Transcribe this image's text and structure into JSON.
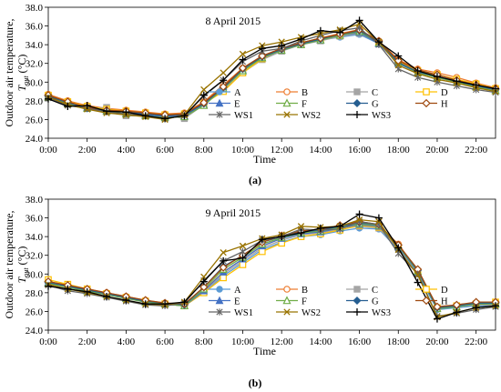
{
  "panel_labels": [
    "(a)",
    "(b)"
  ],
  "legend_order": [
    "A",
    "B",
    "C",
    "D",
    "E",
    "F",
    "G",
    "H",
    "WS1",
    "WS2",
    "WS3"
  ],
  "styles": {
    "A": {
      "color": "#5b9bd5",
      "marker": "circle"
    },
    "B": {
      "color": "#ed7d31",
      "marker": "circle-open"
    },
    "C": {
      "color": "#a5a5a5",
      "marker": "square"
    },
    "D": {
      "color": "#ffc000",
      "marker": "square-open"
    },
    "E": {
      "color": "#4472c4",
      "marker": "triangle"
    },
    "F": {
      "color": "#70ad47",
      "marker": "triangle-open"
    },
    "G": {
      "color": "#255e91",
      "marker": "diamond"
    },
    "H": {
      "color": "#9e480e",
      "marker": "diamond-open"
    },
    "WS1": {
      "color": "#636363",
      "marker": "star"
    },
    "WS2": {
      "color": "#997300",
      "marker": "x"
    },
    "WS3": {
      "color": "#000000",
      "marker": "plus"
    }
  },
  "chart_data": [
    {
      "type": "line",
      "annotation": "8 April 2015",
      "xlabel": "Time",
      "ylabel_line1": "Outdoor air temperature,",
      "ylabel_var": "T",
      "ylabel_sub": "out",
      "ylabel_unit": " (°C)",
      "ylim": [
        24.0,
        38.0
      ],
      "yticks": [
        "24.0",
        "26.0",
        "28.0",
        "30.0",
        "32.0",
        "34.0",
        "36.0",
        "38.0"
      ],
      "xlim": [
        0,
        23
      ],
      "xticks": [
        "0:00",
        "2:00",
        "4:00",
        "6:00",
        "8:00",
        "10:00",
        "12:00",
        "14:00",
        "16:00",
        "18:00",
        "20:00",
        "22:00"
      ],
      "x": [
        0,
        1,
        2,
        3,
        4,
        5,
        6,
        7,
        8,
        9,
        10,
        11,
        12,
        13,
        14,
        15,
        16,
        17,
        18,
        19,
        20,
        21,
        22,
        23
      ],
      "series": [
        {
          "name": "A",
          "values": [
            28.6,
            27.8,
            27.3,
            27.1,
            26.8,
            26.6,
            26.4,
            26.6,
            27.8,
            29.4,
            31.2,
            32.5,
            33.4,
            34.0,
            34.5,
            34.8,
            35.1,
            34.1,
            32.1,
            31.1,
            30.6,
            30.1,
            29.6,
            29.2
          ]
        },
        {
          "name": "B",
          "values": [
            28.7,
            28.0,
            27.5,
            27.2,
            27.0,
            26.8,
            26.6,
            26.7,
            27.9,
            29.7,
            31.5,
            32.8,
            33.6,
            34.2,
            34.7,
            35.2,
            35.6,
            34.4,
            32.4,
            31.4,
            31.0,
            30.5,
            29.9,
            29.4
          ]
        },
        {
          "name": "C",
          "values": [
            28.5,
            27.7,
            27.2,
            27.3,
            26.4,
            26.4,
            26.5,
            26.1,
            27.6,
            29.2,
            31.0,
            32.4,
            33.3,
            34.0,
            34.4,
            34.9,
            35.2,
            34.2,
            32.0,
            31.1,
            30.6,
            30.1,
            29.6,
            29.3
          ]
        },
        {
          "name": "D",
          "values": [
            28.6,
            27.9,
            27.4,
            27.1,
            26.9,
            26.7,
            26.5,
            26.6,
            27.7,
            29.0,
            31.0,
            32.5,
            33.5,
            34.1,
            34.6,
            35.0,
            35.4,
            34.2,
            32.2,
            31.2,
            30.8,
            30.3,
            29.8,
            29.3
          ]
        },
        {
          "name": "E",
          "values": [
            28.5,
            27.8,
            27.3,
            27.0,
            26.8,
            26.5,
            26.3,
            26.4,
            27.6,
            29.5,
            31.3,
            32.6,
            33.4,
            34.0,
            34.5,
            35.0,
            35.3,
            34.1,
            32.0,
            31.0,
            30.5,
            30.0,
            29.5,
            29.1
          ]
        },
        {
          "name": "F",
          "values": [
            28.4,
            27.7,
            27.2,
            26.9,
            26.6,
            26.4,
            26.2,
            26.3,
            27.5,
            29.3,
            31.2,
            32.6,
            33.4,
            34.0,
            34.5,
            35.0,
            35.4,
            34.2,
            32.1,
            31.0,
            30.5,
            30.0,
            29.5,
            29.1
          ]
        },
        {
          "name": "G",
          "values": [
            28.5,
            27.8,
            27.2,
            27.0,
            26.8,
            26.6,
            26.4,
            26.5,
            27.7,
            29.4,
            31.4,
            32.7,
            33.5,
            34.1,
            34.6,
            35.1,
            35.5,
            34.3,
            32.1,
            31.1,
            30.6,
            30.1,
            29.6,
            29.2
          ]
        },
        {
          "name": "H",
          "values": [
            28.6,
            27.9,
            27.3,
            27.0,
            26.9,
            26.7,
            26.5,
            26.6,
            27.8,
            29.5,
            31.5,
            32.8,
            33.6,
            34.2,
            34.7,
            35.1,
            35.6,
            34.4,
            32.3,
            31.3,
            30.8,
            30.2,
            29.7,
            29.3
          ]
        },
        {
          "name": "WS1",
          "values": [
            28.3,
            27.5,
            27.2,
            26.8,
            26.6,
            26.4,
            26.1,
            26.4,
            28.5,
            30.2,
            32.2,
            33.3,
            33.6,
            34.4,
            35.0,
            35.5,
            35.8,
            34.0,
            31.4,
            30.5,
            30.0,
            29.6,
            29.2,
            28.9
          ]
        },
        {
          "name": "WS2",
          "values": [
            28.4,
            27.6,
            27.1,
            26.7,
            26.5,
            26.3,
            26.0,
            26.5,
            29.2,
            31.0,
            33.0,
            33.9,
            34.3,
            34.8,
            35.2,
            35.6,
            36.2,
            34.3,
            31.8,
            30.9,
            30.3,
            29.9,
            29.4,
            29.0
          ]
        },
        {
          "name": "WS3",
          "values": [
            28.2,
            27.4,
            27.5,
            26.9,
            26.8,
            26.4,
            26.1,
            26.4,
            28.6,
            30.2,
            32.4,
            33.6,
            33.9,
            34.6,
            35.5,
            35.3,
            36.6,
            34.3,
            32.8,
            31.2,
            30.6,
            30.1,
            29.7,
            29.3
          ]
        }
      ]
    },
    {
      "type": "line",
      "annotation": "9 April 2015",
      "xlabel": "Time",
      "ylabel_line1": "Outdoor air temperature,",
      "ylabel_var": "T",
      "ylabel_sub": "out",
      "ylabel_unit": " (°C)",
      "ylim": [
        24.0,
        38.0
      ],
      "yticks": [
        "24.0",
        "26.0",
        "28.0",
        "30.0",
        "32.0",
        "34.0",
        "36.0",
        "38.0"
      ],
      "xlim": [
        0,
        23
      ],
      "xticks": [
        "0:00",
        "2:00",
        "4:00",
        "6:00",
        "8:00",
        "10:00",
        "12:00",
        "14:00",
        "16:00",
        "18:00",
        "20:00",
        "22:00"
      ],
      "x": [
        0,
        1,
        2,
        3,
        4,
        5,
        6,
        7,
        8,
        9,
        10,
        11,
        12,
        13,
        14,
        15,
        16,
        17,
        18,
        19,
        20,
        21,
        22,
        23
      ],
      "series": [
        {
          "name": "A",
          "values": [
            29.0,
            28.6,
            28.2,
            27.8,
            27.4,
            27.0,
            26.8,
            26.6,
            28.0,
            29.8,
            31.2,
            32.6,
            33.4,
            34.0,
            34.2,
            34.6,
            34.9,
            34.8,
            32.6,
            30.0,
            26.2,
            26.4,
            26.6,
            26.6
          ]
        },
        {
          "name": "B",
          "values": [
            29.2,
            28.8,
            28.4,
            28.0,
            27.6,
            27.2,
            26.9,
            26.7,
            28.3,
            30.2,
            31.6,
            33.0,
            33.8,
            34.4,
            34.6,
            35.0,
            35.4,
            35.2,
            33.2,
            30.4,
            26.4,
            26.6,
            26.9,
            26.9
          ]
        },
        {
          "name": "C",
          "values": [
            29.0,
            28.6,
            28.2,
            27.8,
            27.4,
            27.0,
            26.8,
            26.6,
            28.1,
            30.0,
            31.4,
            32.8,
            33.6,
            34.2,
            34.4,
            34.8,
            35.1,
            34.9,
            32.8,
            30.2,
            26.3,
            26.5,
            26.7,
            26.7
          ]
        },
        {
          "name": "D",
          "values": [
            29.4,
            28.9,
            28.4,
            27.9,
            27.5,
            27.1,
            26.8,
            26.6,
            28.0,
            29.6,
            31.0,
            32.4,
            33.3,
            34.0,
            34.3,
            34.7,
            35.2,
            35.0,
            32.9,
            30.2,
            26.4,
            26.6,
            26.8,
            27.0
          ]
        },
        {
          "name": "E",
          "values": [
            29.1,
            28.7,
            28.3,
            27.9,
            27.5,
            27.1,
            26.8,
            26.6,
            28.2,
            30.2,
            31.6,
            33.0,
            33.8,
            34.3,
            34.5,
            34.9,
            35.3,
            35.1,
            32.9,
            30.2,
            26.3,
            26.5,
            26.8,
            26.8
          ]
        },
        {
          "name": "F",
          "values": [
            29.0,
            28.6,
            28.2,
            27.8,
            27.4,
            27.0,
            26.8,
            26.6,
            28.4,
            30.5,
            31.8,
            33.2,
            33.9,
            34.4,
            34.6,
            35.0,
            35.4,
            35.2,
            33.0,
            30.3,
            26.3,
            26.5,
            26.8,
            26.8
          ]
        },
        {
          "name": "G",
          "values": [
            29.1,
            28.7,
            28.3,
            27.9,
            27.5,
            27.1,
            26.9,
            26.7,
            28.6,
            30.8,
            32.0,
            33.4,
            34.0,
            34.5,
            34.7,
            35.1,
            35.5,
            35.3,
            33.1,
            30.4,
            26.4,
            26.6,
            26.9,
            26.9
          ]
        },
        {
          "name": "H",
          "values": [
            29.2,
            28.8,
            28.4,
            28.0,
            27.6,
            27.2,
            26.9,
            26.8,
            28.6,
            30.7,
            32.0,
            33.4,
            34.1,
            34.6,
            34.8,
            35.2,
            35.6,
            35.3,
            33.1,
            30.5,
            26.5,
            26.7,
            27.0,
            27.0
          ]
        },
        {
          "name": "WS1",
          "values": [
            28.8,
            28.2,
            27.9,
            27.5,
            27.1,
            26.7,
            26.6,
            26.9,
            29.3,
            31.4,
            32.4,
            33.6,
            34.0,
            34.8,
            34.7,
            34.8,
            35.6,
            35.3,
            32.2,
            30.0,
            25.5,
            25.8,
            26.2,
            26.5
          ]
        },
        {
          "name": "WS2",
          "values": [
            28.9,
            28.4,
            28.0,
            27.6,
            27.2,
            26.8,
            26.7,
            27.0,
            29.7,
            32.3,
            33.0,
            33.8,
            34.2,
            35.1,
            35.0,
            35.1,
            35.8,
            35.6,
            32.6,
            29.9,
            25.4,
            25.9,
            26.4,
            26.6
          ]
        },
        {
          "name": "WS3",
          "values": [
            28.7,
            28.4,
            28.1,
            27.6,
            27.2,
            26.8,
            26.8,
            27.0,
            29.2,
            31.4,
            31.7,
            33.7,
            34.0,
            34.4,
            34.9,
            35.1,
            36.4,
            36.0,
            32.8,
            29.1,
            25.2,
            25.9,
            26.4,
            26.6
          ]
        }
      ]
    }
  ]
}
